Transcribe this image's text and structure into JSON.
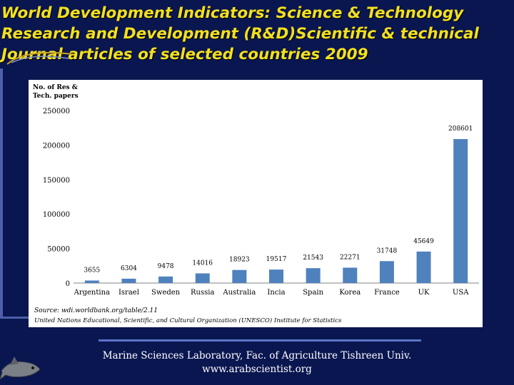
{
  "slide": {
    "title_lines": [
      "World Development Indicators: Science & Technology",
      "Research and Development (R&D)Scientific & technical",
      "Journal articles of selected countries 2009"
    ]
  },
  "chart_data": {
    "type": "bar",
    "title": "",
    "ylabel_lines": [
      "No. of Res &",
      "Tech. papers"
    ],
    "xlabel": "",
    "categories": [
      "Argentina",
      "Israel",
      "Sweden",
      "Russia",
      "Australia",
      "Incia",
      "Spain",
      "Korea",
      "France",
      "UK",
      "USA"
    ],
    "values": [
      3655,
      6304,
      9478,
      14016,
      18923,
      19517,
      21543,
      22271,
      31748,
      45649,
      208601
    ],
    "y_ticks": [
      0,
      50000,
      100000,
      150000,
      200000,
      250000
    ],
    "y_tick_labels": [
      "0",
      "50000",
      "100000",
      "150000",
      "200000",
      "250000"
    ],
    "ylim": [
      0,
      250000
    ],
    "grid": false,
    "bar_color": "#4f81bd",
    "source_lines": [
      "Source: wdi.worldbank.org/table/2.11",
      "United Nations Educational, Scientific, and Cultural Organization (UNESCO) Institute for Statistics"
    ]
  },
  "footer": {
    "line1": "Marine Sciences Laboratory, Fac. of Agriculture Tishreen Univ.",
    "line2": "www.arabscientist.org"
  },
  "colors": {
    "background": "#0a1650",
    "title": "#f2e01e",
    "accent": "#5a73c8"
  }
}
